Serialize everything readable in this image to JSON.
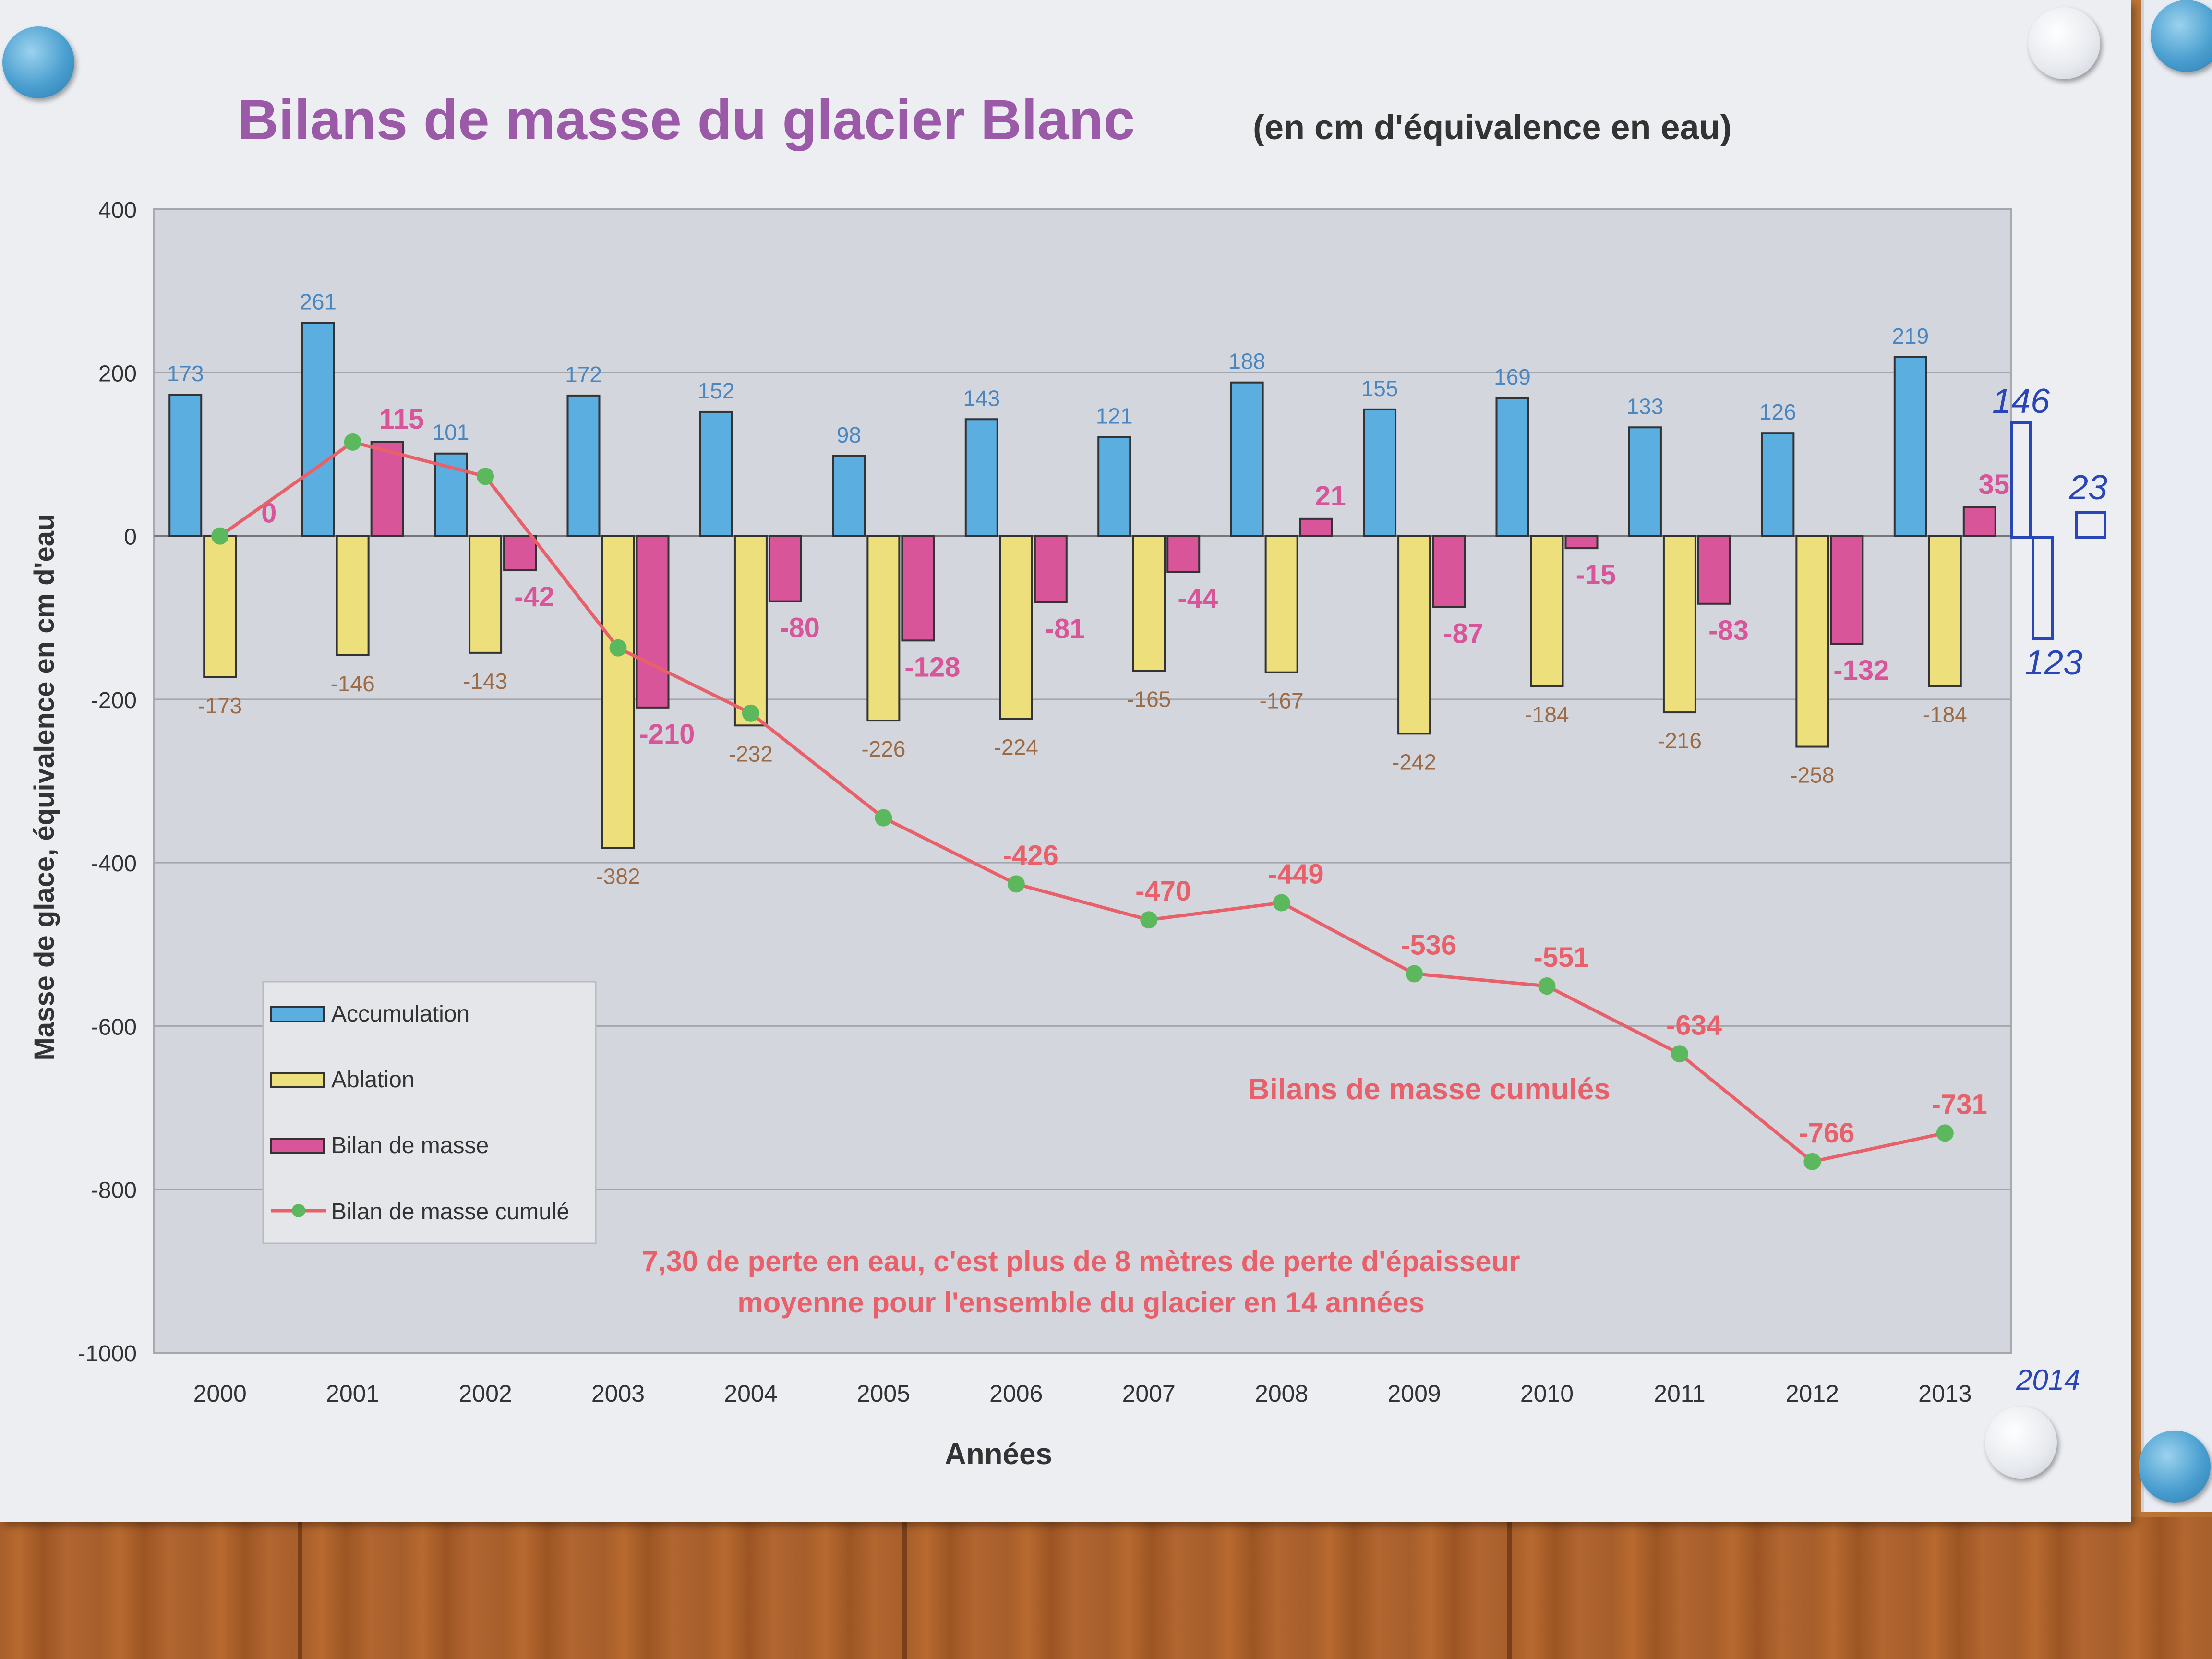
{
  "chart_data": {
    "type": "bar",
    "title": "Bilans de masse du glacier Blanc",
    "subtitle": "(en cm d'équivalence en eau)",
    "xlabel": "Années",
    "ylabel": "Masse de glace, équivalence en cm d'eau",
    "ylim": [
      -1000,
      400
    ],
    "yticks": [
      400,
      200,
      0,
      -200,
      -400,
      -600,
      -800,
      -1000
    ],
    "grid": true,
    "legend_position": "bottom-left",
    "categories": [
      "2000",
      "2001",
      "2002",
      "2003",
      "2004",
      "2005",
      "2006",
      "2007",
      "2008",
      "2009",
      "2010",
      "2011",
      "2012",
      "2013"
    ],
    "series": [
      {
        "name": "Accumulation",
        "type": "bar",
        "color": "#5aaee0",
        "values": [
          173,
          261,
          101,
          172,
          152,
          98,
          143,
          121,
          188,
          155,
          169,
          133,
          126,
          219
        ]
      },
      {
        "name": "Ablation",
        "type": "bar",
        "color": "#ecdf7c",
        "values": [
          -173,
          -146,
          -143,
          -382,
          -232,
          -226,
          -224,
          -165,
          -167,
          -242,
          -184,
          -216,
          -258,
          -184
        ]
      },
      {
        "name": "Bilan de masse",
        "type": "bar",
        "color": "#d9559a",
        "values": [
          0,
          115,
          -42,
          -210,
          -80,
          -128,
          -81,
          -44,
          21,
          -87,
          -15,
          -83,
          -132,
          35
        ]
      },
      {
        "name": "Bilan de masse cumulé",
        "type": "line",
        "color": "#e8606a",
        "marker_color": "#5cb85c",
        "values": [
          0,
          115,
          73,
          -137,
          -217,
          -345,
          -426,
          -470,
          -449,
          -536,
          -551,
          -634,
          -766,
          -731
        ]
      }
    ],
    "line_label": "Bilans de masse cumulés",
    "annotation": [
      "7,30 de perte en eau, c'est plus de 8 mètres de perte d'épaisseur",
      "moyenne pour l'ensemble du glacier en 14 années"
    ],
    "handwritten": {
      "accumulation": "146",
      "ablation": "123",
      "bilan": "23",
      "year": "2014"
    }
  }
}
